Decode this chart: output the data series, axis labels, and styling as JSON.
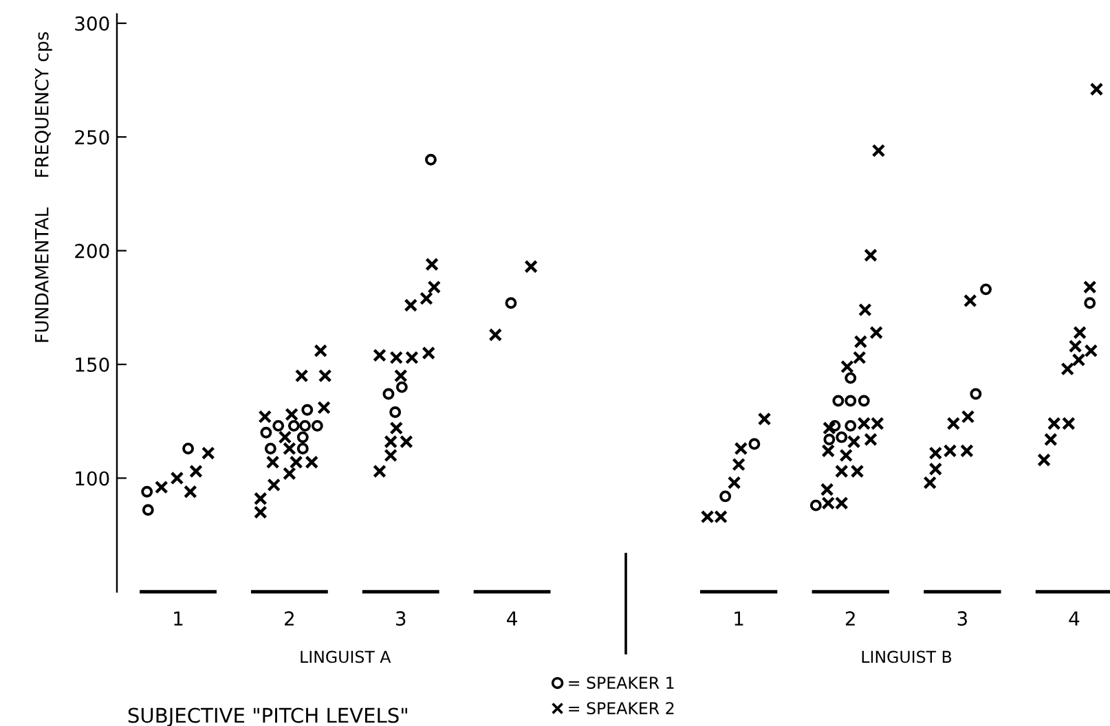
{
  "chart_data": [
    {
      "type": "scatter",
      "xlabel": "SUBJECTIVE \"PITCH LEVELS\"",
      "ylabel": "FUNDAMENTAL     FREQUENCY cps",
      "annotations": [
        "LINGUIST A"
      ],
      "xlim": [
        0.45,
        4.33
      ],
      "ylim": [
        50,
        304
      ],
      "xticks": [
        1,
        2,
        3,
        4
      ],
      "yticks": [
        100,
        150,
        200,
        250,
        300
      ],
      "grid": false,
      "legend": "bottom right",
      "series": [
        {
          "name": "= SPEAKER 1",
          "color": "#000000",
          "marker": "circle",
          "x": [
            0.72,
            0.73,
            1.09,
            1.79,
            1.83,
            1.9,
            2.04,
            2.14,
            2.12,
            2.12,
            2.16,
            2.25,
            2.89,
            3.01,
            2.95,
            3.27,
            3.99
          ],
          "values": [
            94,
            86,
            113,
            120,
            113,
            123,
            123,
            123,
            118,
            113,
            130,
            123,
            137,
            140,
            129,
            240,
            177
          ]
        },
        {
          "name": "= SPEAKER 2",
          "color": "#000000",
          "marker": "cross",
          "x": [
            0.85,
            0.99,
            1.11,
            1.16,
            1.27,
            1.74,
            1.74,
            1.86,
            1.78,
            1.85,
            1.96,
            2.0,
            2.0,
            2.02,
            2.06,
            2.11,
            2.2,
            2.28,
            2.32,
            2.31,
            2.81,
            2.96,
            3.1,
            3.25,
            3.0,
            2.96,
            2.91,
            3.05,
            2.91,
            2.81,
            3.09,
            3.23,
            3.3,
            3.28,
            3.85,
            4.17
          ],
          "values": [
            96,
            100,
            94,
            103,
            111,
            91,
            85,
            97,
            127,
            107,
            118,
            102,
            113,
            128,
            107,
            145,
            107,
            156,
            145,
            131,
            154,
            153,
            153,
            155,
            145,
            122,
            116,
            116,
            110,
            103,
            176,
            179,
            184,
            194,
            163,
            193
          ]
        }
      ]
    },
    {
      "type": "scatter",
      "annotations": [
        "LINGUIST B"
      ],
      "xlim": [
        -4.56,
        4.32
      ],
      "ylim": [
        50,
        304
      ],
      "xticks": [
        1,
        2,
        3,
        4
      ],
      "tick_labels": "x",
      "grid": false,
      "series": [
        {
          "color": "#000000",
          "marker": "circle",
          "x": [
            0.88,
            1.14,
            2.0,
            1.89,
            2.0,
            2.12,
            1.86,
            2.0,
            1.92,
            1.81,
            1.69,
            3.21,
            3.12,
            4.14
          ],
          "values": [
            92,
            115,
            144,
            134,
            134,
            134,
            123,
            123,
            118,
            117,
            88,
            183,
            137,
            177
          ]
        },
        {
          "color": "#000000",
          "marker": "cross",
          "x": [
            0.72,
            0.84,
            0.96,
            1.0,
            1.02,
            1.23,
            2.25,
            2.18,
            2.13,
            2.23,
            2.09,
            2.08,
            1.97,
            2.12,
            2.24,
            1.81,
            2.03,
            2.18,
            1.96,
            1.8,
            1.92,
            2.06,
            1.79,
            1.8,
            1.92,
            3.07,
            3.05,
            2.92,
            2.76,
            2.89,
            3.04,
            2.76,
            2.71,
            4.2,
            4.14,
            4.05,
            4.01,
            4.15,
            4.04,
            3.94,
            3.82,
            3.95,
            3.79,
            3.73
          ],
          "values": [
            83,
            83,
            98,
            106,
            113,
            126,
            244,
            198,
            174,
            164,
            160,
            153,
            149,
            124,
            124,
            122,
            116,
            117,
            110,
            112,
            103,
            103,
            95,
            89,
            89,
            178,
            127,
            124,
            111,
            112,
            112,
            104,
            98,
            271,
            184,
            164,
            158,
            156,
            152,
            148,
            124,
            124,
            117,
            108
          ]
        }
      ]
    }
  ]
}
